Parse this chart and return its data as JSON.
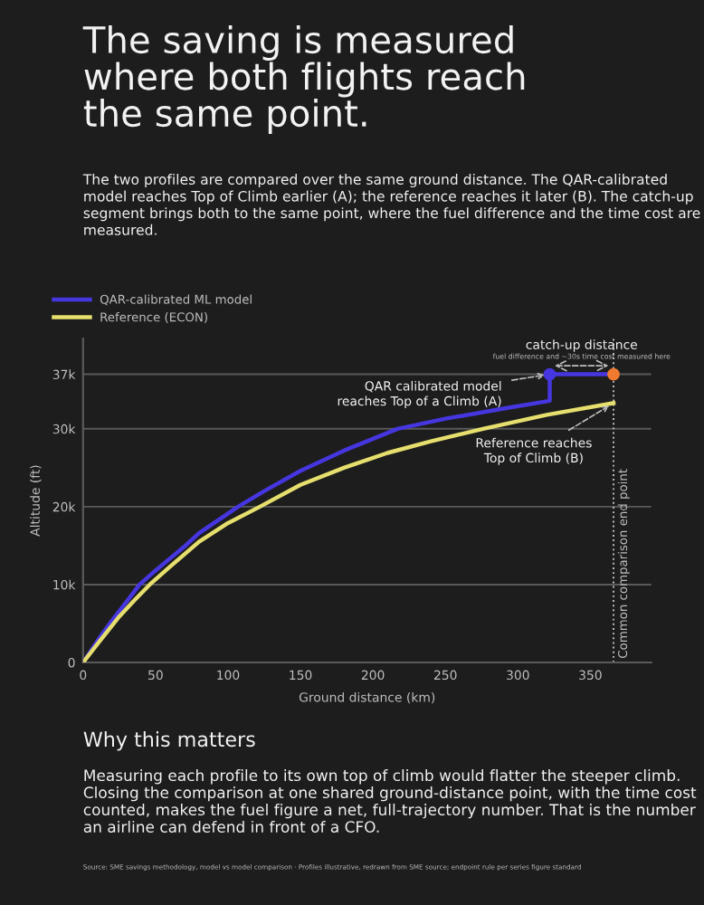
{
  "chart_data": {
    "type": "line",
    "title": "The saving is measured\nwhere both flights reach\nthe same point.",
    "subtitle": "The two profiles are compared over the same ground distance. The QAR-calibrated model reaches Top of Climb earlier (A); the reference reaches it later (B). The catch-up segment brings both to the same point, where the fuel difference and the time cost are measured.",
    "xlabel": "Ground distance (km)",
    "ylabel": "Altitude (ft)",
    "series": [
      {
        "name": "QAR-calibrated ML model",
        "color": "#4636e0",
        "x": [
          0,
          10,
          20,
          30,
          39,
          50,
          59,
          70,
          80,
          95,
          107,
          125,
          150,
          180,
          217,
          250,
          290,
          322,
          322,
          366
        ],
        "values": [
          0,
          2800,
          5400,
          7800,
          10000,
          11800,
          13200,
          14900,
          16600,
          18500,
          20000,
          22000,
          24600,
          27200,
          30000,
          31300,
          32600,
          33600,
          37000,
          37000
        ]
      },
      {
        "name": "Reference (ECON)",
        "color": "#e6df6e",
        "x": [
          0,
          10,
          25,
          35,
          46,
          60,
          80,
          100,
          122,
          150,
          180,
          210,
          240,
          276,
          320,
          366
        ],
        "values": [
          0,
          2400,
          5900,
          7900,
          10000,
          12300,
          15500,
          17900,
          20000,
          22800,
          25000,
          26900,
          28400,
          30000,
          31800,
          33300
        ]
      },
      {
        "type": "scatter",
        "marker": "circle",
        "color": "#4636e0",
        "x": [
          322
        ],
        "values": [
          37000
        ]
      },
      {
        "type": "scatter",
        "marker": "circle",
        "color": "#f07a30",
        "x": [
          366
        ],
        "values": [
          37000
        ]
      }
    ],
    "xlim": [
      0,
      392
    ],
    "ylim": [
      0,
      41600
    ],
    "xticks": [
      0,
      50,
      100,
      150,
      200,
      250,
      300,
      350
    ],
    "yticks": [
      {
        "value": 0,
        "label": "0"
      },
      {
        "value": 10000,
        "label": "10k"
      },
      {
        "value": 20000,
        "label": "20k"
      },
      {
        "value": 30000,
        "label": "30k"
      },
      {
        "value": 37000,
        "label": "37k"
      }
    ],
    "grid": "y",
    "legend": "top left",
    "marker": "none",
    "line_style": "solid",
    "ref_lines": [
      {
        "axis": "x",
        "value": 366,
        "label": "Common comparison end point",
        "color": "#bbbbbb",
        "line_style": "dotted"
      }
    ],
    "annotations": [
      "catch-up distance",
      "fuel difference and ~30s time cost measured here",
      {
        "text": "QAR calibrated model\nreaches Top of a Climb (A)",
        "x": 322,
        "y": 37000
      },
      {
        "text": "Reference reaches\nTop of Climb (B)",
        "x": 366,
        "y": 33300
      },
      "Why this matters",
      "Measuring each profile to its own top of climb would flatter the steeper climb. Closing the comparison at one shared ground-distance point, with the time cost counted, makes the fuel figure a net, full-trajectory number. That is the number an airline can defend in front of a CFO.",
      "Source: SME savings methodology, model vs model comparison · Profiles illustrative, redrawn from SME source; endpoint rule per series figure standard"
    ]
  }
}
